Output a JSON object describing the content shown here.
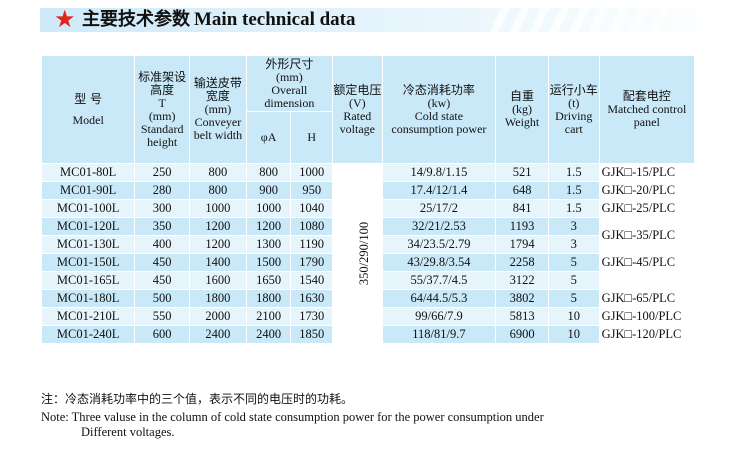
{
  "banner": {
    "title_cn": "主要技术参数",
    "title_en": "Main technical data",
    "star_color": "#e2241b"
  },
  "header": {
    "model": {
      "cn": "型 号",
      "en": "Model"
    },
    "height": {
      "cn": "标准架设高度",
      "sym": "T",
      "unit": "(mm)",
      "en": "Standard height"
    },
    "belt": {
      "cn": "输送皮带宽度",
      "unit": "(mm)",
      "en": "Conveyer belt width"
    },
    "dimension": {
      "cn": "外形尺寸",
      "unit": "(mm)",
      "en": "Overall dimension",
      "sub_a": "φA",
      "sub_h": "H"
    },
    "voltage": {
      "cn": "额定电压",
      "unit": "(V)",
      "en": "Rated voltage"
    },
    "power": {
      "cn": "冷态消耗功率",
      "unit": "(kw)",
      "en": "Cold state consumption power"
    },
    "weight": {
      "cn": "自重",
      "unit": "(kg)",
      "en": "Weight"
    },
    "cart": {
      "cn": "运行小车",
      "unit": "(t)",
      "en": "Driving cart"
    },
    "control": {
      "cn": "配套电控",
      "en": "Matched control panel"
    }
  },
  "voltage_value": "350/290/100",
  "rows": [
    {
      "model": "MC01-80L",
      "height": "250",
      "belt": "800",
      "a": "800",
      "h": "1000",
      "power": "14/9.8/1.15",
      "weight": "521",
      "cart": "1.5"
    },
    {
      "model": "MC01-90L",
      "height": "280",
      "belt": "800",
      "a": "900",
      "h": "950",
      "power": "17.4/12/1.4",
      "weight": "648",
      "cart": "1.5"
    },
    {
      "model": "MC01-100L",
      "height": "300",
      "belt": "1000",
      "a": "1000",
      "h": "1040",
      "power": "25/17/2",
      "weight": "841",
      "cart": "1.5"
    },
    {
      "model": "MC01-120L",
      "height": "350",
      "belt": "1200",
      "a": "1200",
      "h": "1080",
      "power": "32/21/2.53",
      "weight": "1193",
      "cart": "3"
    },
    {
      "model": "MC01-130L",
      "height": "400",
      "belt": "1200",
      "a": "1300",
      "h": "1190",
      "power": "34/23.5/2.79",
      "weight": "1794",
      "cart": "3"
    },
    {
      "model": "MC01-150L",
      "height": "450",
      "belt": "1400",
      "a": "1500",
      "h": "1790",
      "power": "43/29.8/3.54",
      "weight": "2258",
      "cart": "5"
    },
    {
      "model": "MC01-165L",
      "height": "450",
      "belt": "1600",
      "a": "1650",
      "h": "1540",
      "power": "55/37.7/4.5",
      "weight": "3122",
      "cart": "5"
    },
    {
      "model": "MC01-180L",
      "height": "500",
      "belt": "1800",
      "a": "1800",
      "h": "1630",
      "power": "64/44.5/5.3",
      "weight": "3802",
      "cart": "5"
    },
    {
      "model": "MC01-210L",
      "height": "550",
      "belt": "2000",
      "a": "2100",
      "h": "1730",
      "power": "99/66/7.9",
      "weight": "5813",
      "cart": "10"
    },
    {
      "model": "MC01-240L",
      "height": "600",
      "belt": "2400",
      "a": "2400",
      "h": "1850",
      "power": "118/81/9.7",
      "weight": "6900",
      "cart": "10"
    }
  ],
  "controls": [
    "GJK□-15/PLC",
    "GJK□-20/PLC",
    "GJK□-25/PLC",
    "GJK□-35/PLC",
    "GJK□-45/PLC",
    "GJK□-65/PLC",
    "GJK□-100/PLC",
    "GJK□-120/PLC"
  ],
  "notes": {
    "cn": "注：冷态消耗功率中的三个值，表示不同的电压时的功耗。",
    "en_line1": "Note: Three valuse in the column of cold state consumption power for the power consumption under",
    "en_line2": "Different voltages."
  }
}
